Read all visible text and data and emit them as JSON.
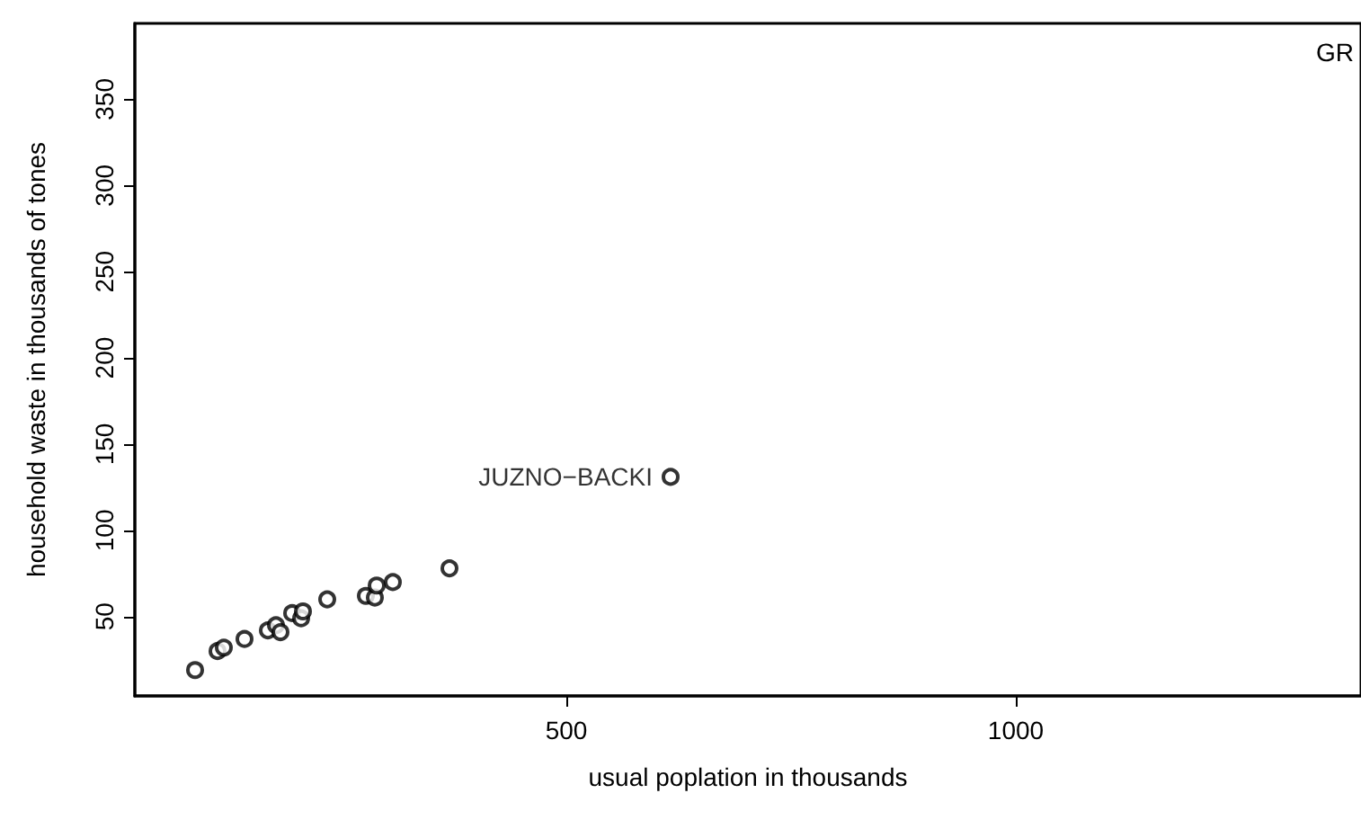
{
  "chart_data": {
    "type": "scatter",
    "xlabel": "usual poplation in thousands",
    "ylabel": "household waste in thousands of tones",
    "x": [
      87,
      112,
      119,
      142,
      168,
      177,
      182,
      195,
      205,
      207,
      234,
      277,
      287,
      289,
      307,
      370,
      616
    ],
    "values": [
      19,
      30,
      32,
      37,
      42,
      45,
      41,
      52,
      49,
      53,
      60,
      62,
      61,
      68,
      70,
      78,
      131
    ],
    "color": "#000000",
    "marker": "circle",
    "grid": false,
    "xlim": [
      20,
      1384
    ],
    "xticks": [
      500,
      1000
    ],
    "ylim": [
      4,
      394
    ],
    "yticks": [
      50,
      100,
      150,
      200,
      250,
      300,
      350
    ],
    "annotations": [
      {
        "text": "JUZNO−BACKI",
        "x": 616,
        "y": 131
      },
      "GR"
    ]
  }
}
